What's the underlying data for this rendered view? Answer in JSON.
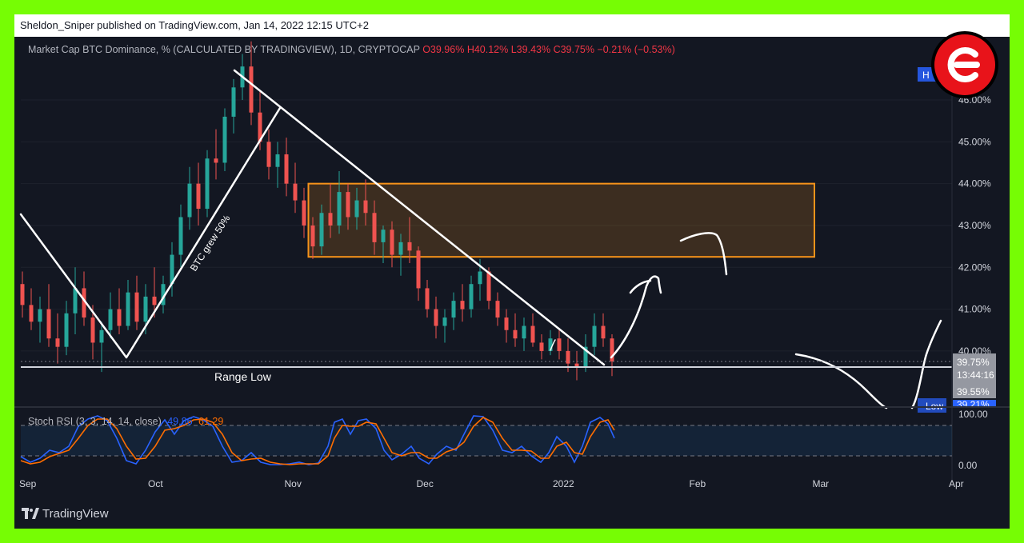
{
  "header": {
    "publisher_line": "Sheldon_Sniper published on TradingView.com, Jan 14, 2022 12:15 UTC+2"
  },
  "legend": {
    "symbol": "Market Cap BTC Dominance, % (CALCULATED BY TRADINGVIEW), 1D, CRYPTOCAP",
    "open": "O39.96%",
    "high": "H40.12%",
    "low": "L39.43%",
    "close": "C39.75%",
    "change": "−0.21% (−0.53%)"
  },
  "annotations": {
    "btc_grew": "BTC grew 50%",
    "range_low": "Range Low",
    "axis_tag_high": "H",
    "axis_tag_low": "Low"
  },
  "price_tags": {
    "last_price": "39.75%",
    "countdown": "13:44:16",
    "range_low_price": "39.55%",
    "low_tag_value": "39.21%"
  },
  "rsi": {
    "label_prefix": "Stoch RSI (3, 3, 14, 14, close)",
    "k_value": "49.86",
    "d_value": "61.29",
    "axis_labels": [
      "100.00",
      "0.00"
    ]
  },
  "footer": {
    "brand": "TradingView"
  },
  "colors": {
    "up": "#26a69a",
    "down": "#ef5350",
    "zone_border": "#f7931a",
    "k_line": "#2962ff",
    "d_line": "#ff6d00",
    "badge_red": "#e8131a",
    "background": "#131722",
    "frame": "#76fd04"
  },
  "chart_data": {
    "type": "candlestick",
    "title": "Market Cap BTC Dominance, % (CALCULATED BY TRADINGVIEW), 1D, CRYPTOCAP",
    "ylabel": "%",
    "ylim": [
      38.8,
      47.5
    ],
    "y_ticks": [
      "46.00%",
      "45.00%",
      "44.00%",
      "43.00%",
      "42.00%",
      "41.00%",
      "40.00%"
    ],
    "x_ticks": [
      "Sep",
      "Oct",
      "Nov",
      "Dec",
      "2022",
      "Feb",
      "Mar",
      "Apr"
    ],
    "x_ticks_note": "visible x-axis labels; dates in months",
    "range_low": 39.55,
    "zone": {
      "from": "2021-11-05",
      "to": "2022-02-28",
      "low": 42.25,
      "high": 44.0
    },
    "candles": [
      {
        "date": "2021-09-01",
        "o": 41.6,
        "h": 41.9,
        "l": 40.8,
        "c": 41.1
      },
      {
        "date": "2021-09-03",
        "o": 41.1,
        "h": 41.5,
        "l": 40.5,
        "c": 40.7
      },
      {
        "date": "2021-09-05",
        "o": 40.7,
        "h": 41.3,
        "l": 40.2,
        "c": 41.0
      },
      {
        "date": "2021-09-07",
        "o": 41.0,
        "h": 41.6,
        "l": 40.1,
        "c": 40.3
      },
      {
        "date": "2021-09-09",
        "o": 40.3,
        "h": 40.9,
        "l": 39.7,
        "c": 40.1
      },
      {
        "date": "2021-09-11",
        "o": 40.1,
        "h": 41.2,
        "l": 39.9,
        "c": 40.9
      },
      {
        "date": "2021-09-13",
        "o": 40.9,
        "h": 42.0,
        "l": 40.4,
        "c": 41.5
      },
      {
        "date": "2021-09-15",
        "o": 41.5,
        "h": 41.9,
        "l": 40.6,
        "c": 40.8
      },
      {
        "date": "2021-09-17",
        "o": 40.8,
        "h": 41.1,
        "l": 39.8,
        "c": 40.2
      },
      {
        "date": "2021-09-19",
        "o": 40.2,
        "h": 40.7,
        "l": 39.5,
        "c": 40.5
      },
      {
        "date": "2021-09-21",
        "o": 40.5,
        "h": 41.4,
        "l": 40.3,
        "c": 41.0
      },
      {
        "date": "2021-09-23",
        "o": 41.0,
        "h": 41.5,
        "l": 40.4,
        "c": 40.6
      },
      {
        "date": "2021-09-25",
        "o": 40.6,
        "h": 41.7,
        "l": 40.5,
        "c": 41.4
      },
      {
        "date": "2021-09-27",
        "o": 41.4,
        "h": 41.8,
        "l": 40.5,
        "c": 40.7
      },
      {
        "date": "2021-09-29",
        "o": 40.7,
        "h": 41.6,
        "l": 40.4,
        "c": 41.3
      },
      {
        "date": "2021-10-01",
        "o": 41.3,
        "h": 42.0,
        "l": 40.8,
        "c": 41.1
      },
      {
        "date": "2021-10-03",
        "o": 41.1,
        "h": 41.8,
        "l": 40.9,
        "c": 41.6
      },
      {
        "date": "2021-10-05",
        "o": 41.6,
        "h": 42.6,
        "l": 41.3,
        "c": 42.3
      },
      {
        "date": "2021-10-07",
        "o": 42.3,
        "h": 43.5,
        "l": 42.0,
        "c": 43.2
      },
      {
        "date": "2021-10-09",
        "o": 43.2,
        "h": 44.4,
        "l": 42.9,
        "c": 44.0
      },
      {
        "date": "2021-10-11",
        "o": 44.0,
        "h": 44.5,
        "l": 43.0,
        "c": 43.4
      },
      {
        "date": "2021-10-13",
        "o": 43.4,
        "h": 44.8,
        "l": 43.2,
        "c": 44.6
      },
      {
        "date": "2021-10-15",
        "o": 44.6,
        "h": 45.3,
        "l": 44.1,
        "c": 44.5
      },
      {
        "date": "2021-10-17",
        "o": 44.5,
        "h": 45.8,
        "l": 44.3,
        "c": 45.6
      },
      {
        "date": "2021-10-19",
        "o": 45.6,
        "h": 46.5,
        "l": 45.2,
        "c": 46.3
      },
      {
        "date": "2021-10-21",
        "o": 46.3,
        "h": 47.1,
        "l": 46.0,
        "c": 46.8
      },
      {
        "date": "2021-10-23",
        "o": 46.8,
        "h": 47.4,
        "l": 45.4,
        "c": 45.7
      },
      {
        "date": "2021-10-25",
        "o": 45.7,
        "h": 46.2,
        "l": 44.8,
        "c": 45.0
      },
      {
        "date": "2021-10-27",
        "o": 45.0,
        "h": 45.3,
        "l": 44.1,
        "c": 44.4
      },
      {
        "date": "2021-10-29",
        "o": 44.4,
        "h": 45.0,
        "l": 43.9,
        "c": 44.7
      },
      {
        "date": "2021-10-31",
        "o": 44.7,
        "h": 45.1,
        "l": 43.7,
        "c": 44.0
      },
      {
        "date": "2021-11-02",
        "o": 44.0,
        "h": 44.5,
        "l": 43.3,
        "c": 43.6
      },
      {
        "date": "2021-11-04",
        "o": 43.6,
        "h": 43.9,
        "l": 42.7,
        "c": 43.0
      },
      {
        "date": "2021-11-06",
        "o": 43.0,
        "h": 43.2,
        "l": 42.2,
        "c": 42.5
      },
      {
        "date": "2021-11-08",
        "o": 42.5,
        "h": 43.5,
        "l": 42.3,
        "c": 43.3
      },
      {
        "date": "2021-11-10",
        "o": 43.3,
        "h": 44.0,
        "l": 42.7,
        "c": 43.0
      },
      {
        "date": "2021-11-12",
        "o": 43.0,
        "h": 44.3,
        "l": 42.8,
        "c": 43.8
      },
      {
        "date": "2021-11-14",
        "o": 43.8,
        "h": 44.0,
        "l": 42.9,
        "c": 43.2
      },
      {
        "date": "2021-11-16",
        "o": 43.2,
        "h": 43.9,
        "l": 42.9,
        "c": 43.6
      },
      {
        "date": "2021-11-18",
        "o": 43.6,
        "h": 44.1,
        "l": 43.0,
        "c": 43.3
      },
      {
        "date": "2021-11-20",
        "o": 43.3,
        "h": 43.6,
        "l": 42.3,
        "c": 42.6
      },
      {
        "date": "2021-11-22",
        "o": 42.6,
        "h": 43.0,
        "l": 42.1,
        "c": 42.9
      },
      {
        "date": "2021-11-24",
        "o": 42.9,
        "h": 43.1,
        "l": 42.0,
        "c": 42.3
      },
      {
        "date": "2021-11-26",
        "o": 42.3,
        "h": 42.8,
        "l": 41.8,
        "c": 42.6
      },
      {
        "date": "2021-11-28",
        "o": 42.6,
        "h": 43.2,
        "l": 42.1,
        "c": 42.4
      },
      {
        "date": "2021-11-30",
        "o": 42.4,
        "h": 42.5,
        "l": 41.2,
        "c": 41.5
      },
      {
        "date": "2021-12-02",
        "o": 41.5,
        "h": 41.7,
        "l": 40.8,
        "c": 41.0
      },
      {
        "date": "2021-12-04",
        "o": 41.0,
        "h": 41.3,
        "l": 40.3,
        "c": 40.6
      },
      {
        "date": "2021-12-06",
        "o": 40.6,
        "h": 41.0,
        "l": 40.2,
        "c": 40.8
      },
      {
        "date": "2021-12-08",
        "o": 40.8,
        "h": 41.4,
        "l": 40.5,
        "c": 41.2
      },
      {
        "date": "2021-12-10",
        "o": 41.2,
        "h": 41.6,
        "l": 40.7,
        "c": 41.0
      },
      {
        "date": "2021-12-12",
        "o": 41.0,
        "h": 41.8,
        "l": 40.8,
        "c": 41.6
      },
      {
        "date": "2021-12-14",
        "o": 41.6,
        "h": 42.2,
        "l": 41.2,
        "c": 41.9
      },
      {
        "date": "2021-12-16",
        "o": 41.9,
        "h": 42.0,
        "l": 41.0,
        "c": 41.2
      },
      {
        "date": "2021-12-18",
        "o": 41.2,
        "h": 41.4,
        "l": 40.6,
        "c": 40.8
      },
      {
        "date": "2021-12-20",
        "o": 40.8,
        "h": 41.0,
        "l": 40.2,
        "c": 40.5
      },
      {
        "date": "2021-12-22",
        "o": 40.5,
        "h": 40.9,
        "l": 40.1,
        "c": 40.3
      },
      {
        "date": "2021-12-24",
        "o": 40.3,
        "h": 40.8,
        "l": 40.0,
        "c": 40.6
      },
      {
        "date": "2021-12-26",
        "o": 40.6,
        "h": 40.9,
        "l": 40.1,
        "c": 40.2
      },
      {
        "date": "2021-12-28",
        "o": 40.2,
        "h": 40.4,
        "l": 39.8,
        "c": 40.0
      },
      {
        "date": "2021-12-30",
        "o": 40.0,
        "h": 40.5,
        "l": 39.9,
        "c": 40.3
      },
      {
        "date": "2022-01-01",
        "o": 40.3,
        "h": 40.5,
        "l": 39.8,
        "c": 40.0
      },
      {
        "date": "2022-01-03",
        "o": 40.0,
        "h": 40.3,
        "l": 39.5,
        "c": 39.7
      },
      {
        "date": "2022-01-05",
        "o": 39.7,
        "h": 40.0,
        "l": 39.3,
        "c": 39.6
      },
      {
        "date": "2022-01-07",
        "o": 39.6,
        "h": 40.4,
        "l": 39.5,
        "c": 40.1
      },
      {
        "date": "2022-01-09",
        "o": 40.1,
        "h": 40.9,
        "l": 39.9,
        "c": 40.6
      },
      {
        "date": "2022-01-11",
        "o": 40.6,
        "h": 40.9,
        "l": 40.1,
        "c": 40.3
      },
      {
        "date": "2022-01-13",
        "o": 40.3,
        "h": 40.4,
        "l": 39.4,
        "c": 39.75
      }
    ]
  }
}
